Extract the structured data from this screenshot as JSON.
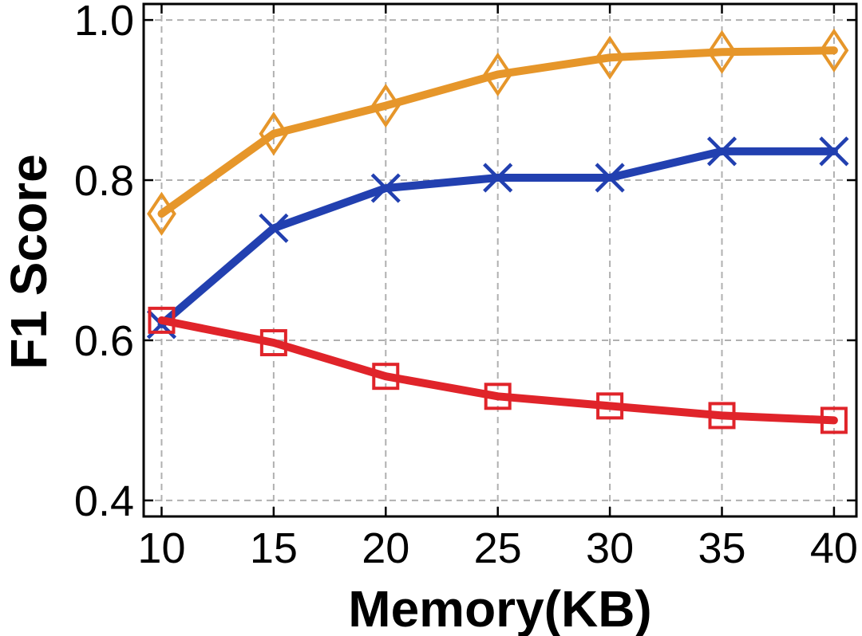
{
  "chart_data": {
    "type": "line",
    "title": "",
    "xlabel": "Memory(KB)",
    "ylabel": "F1 Score",
    "x": [
      10,
      15,
      20,
      25,
      30,
      35,
      40
    ],
    "xlim": [
      9.2,
      41.0
    ],
    "ylim": [
      0.38,
      1.02
    ],
    "xticks": [
      10,
      15,
      20,
      25,
      30,
      35,
      40
    ],
    "yticks": [
      0.4,
      0.6,
      0.8,
      1.0
    ],
    "ytick_labels": [
      "0.4",
      "0.6",
      "0.8",
      "1.0"
    ],
    "grid": true,
    "legend": "none",
    "series": [
      {
        "marker": "diamond",
        "color": "#E6962A",
        "values": [
          0.758,
          0.858,
          0.893,
          0.932,
          0.953,
          0.96,
          0.962
        ]
      },
      {
        "marker": "x",
        "color": "#2240B0",
        "values": [
          0.62,
          0.74,
          0.79,
          0.803,
          0.803,
          0.836,
          0.836
        ]
      },
      {
        "marker": "square",
        "color": "#E0242A",
        "values": [
          0.625,
          0.597,
          0.555,
          0.53,
          0.518,
          0.506,
          0.5
        ]
      }
    ]
  }
}
